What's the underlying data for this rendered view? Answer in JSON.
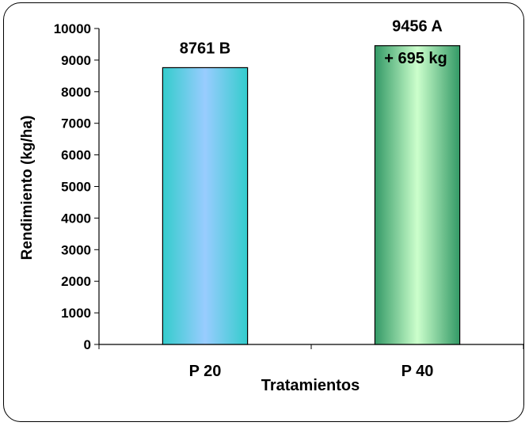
{
  "chart_data": {
    "type": "bar",
    "title": "",
    "xlabel": "Tratamientos",
    "ylabel": "Rendimiento (kg/ha)",
    "ylim": [
      0,
      10000
    ],
    "yticks": [
      "0",
      "1000",
      "2000",
      "3000",
      "4000",
      "5000",
      "6000",
      "7000",
      "8000",
      "9000",
      "10000"
    ],
    "categories": [
      "P 20",
      "P 40"
    ],
    "values": [
      8761,
      9456
    ],
    "data_labels": [
      "8761 B",
      "9456 A"
    ],
    "annotation": "+ 695 kg",
    "grid": false,
    "legend": "none",
    "colors": {
      "bar1_edge": "#33cccc",
      "bar1_center": "#99ccff",
      "bar2_edge": "#339966",
      "bar2_center": "#ccffcc"
    }
  }
}
